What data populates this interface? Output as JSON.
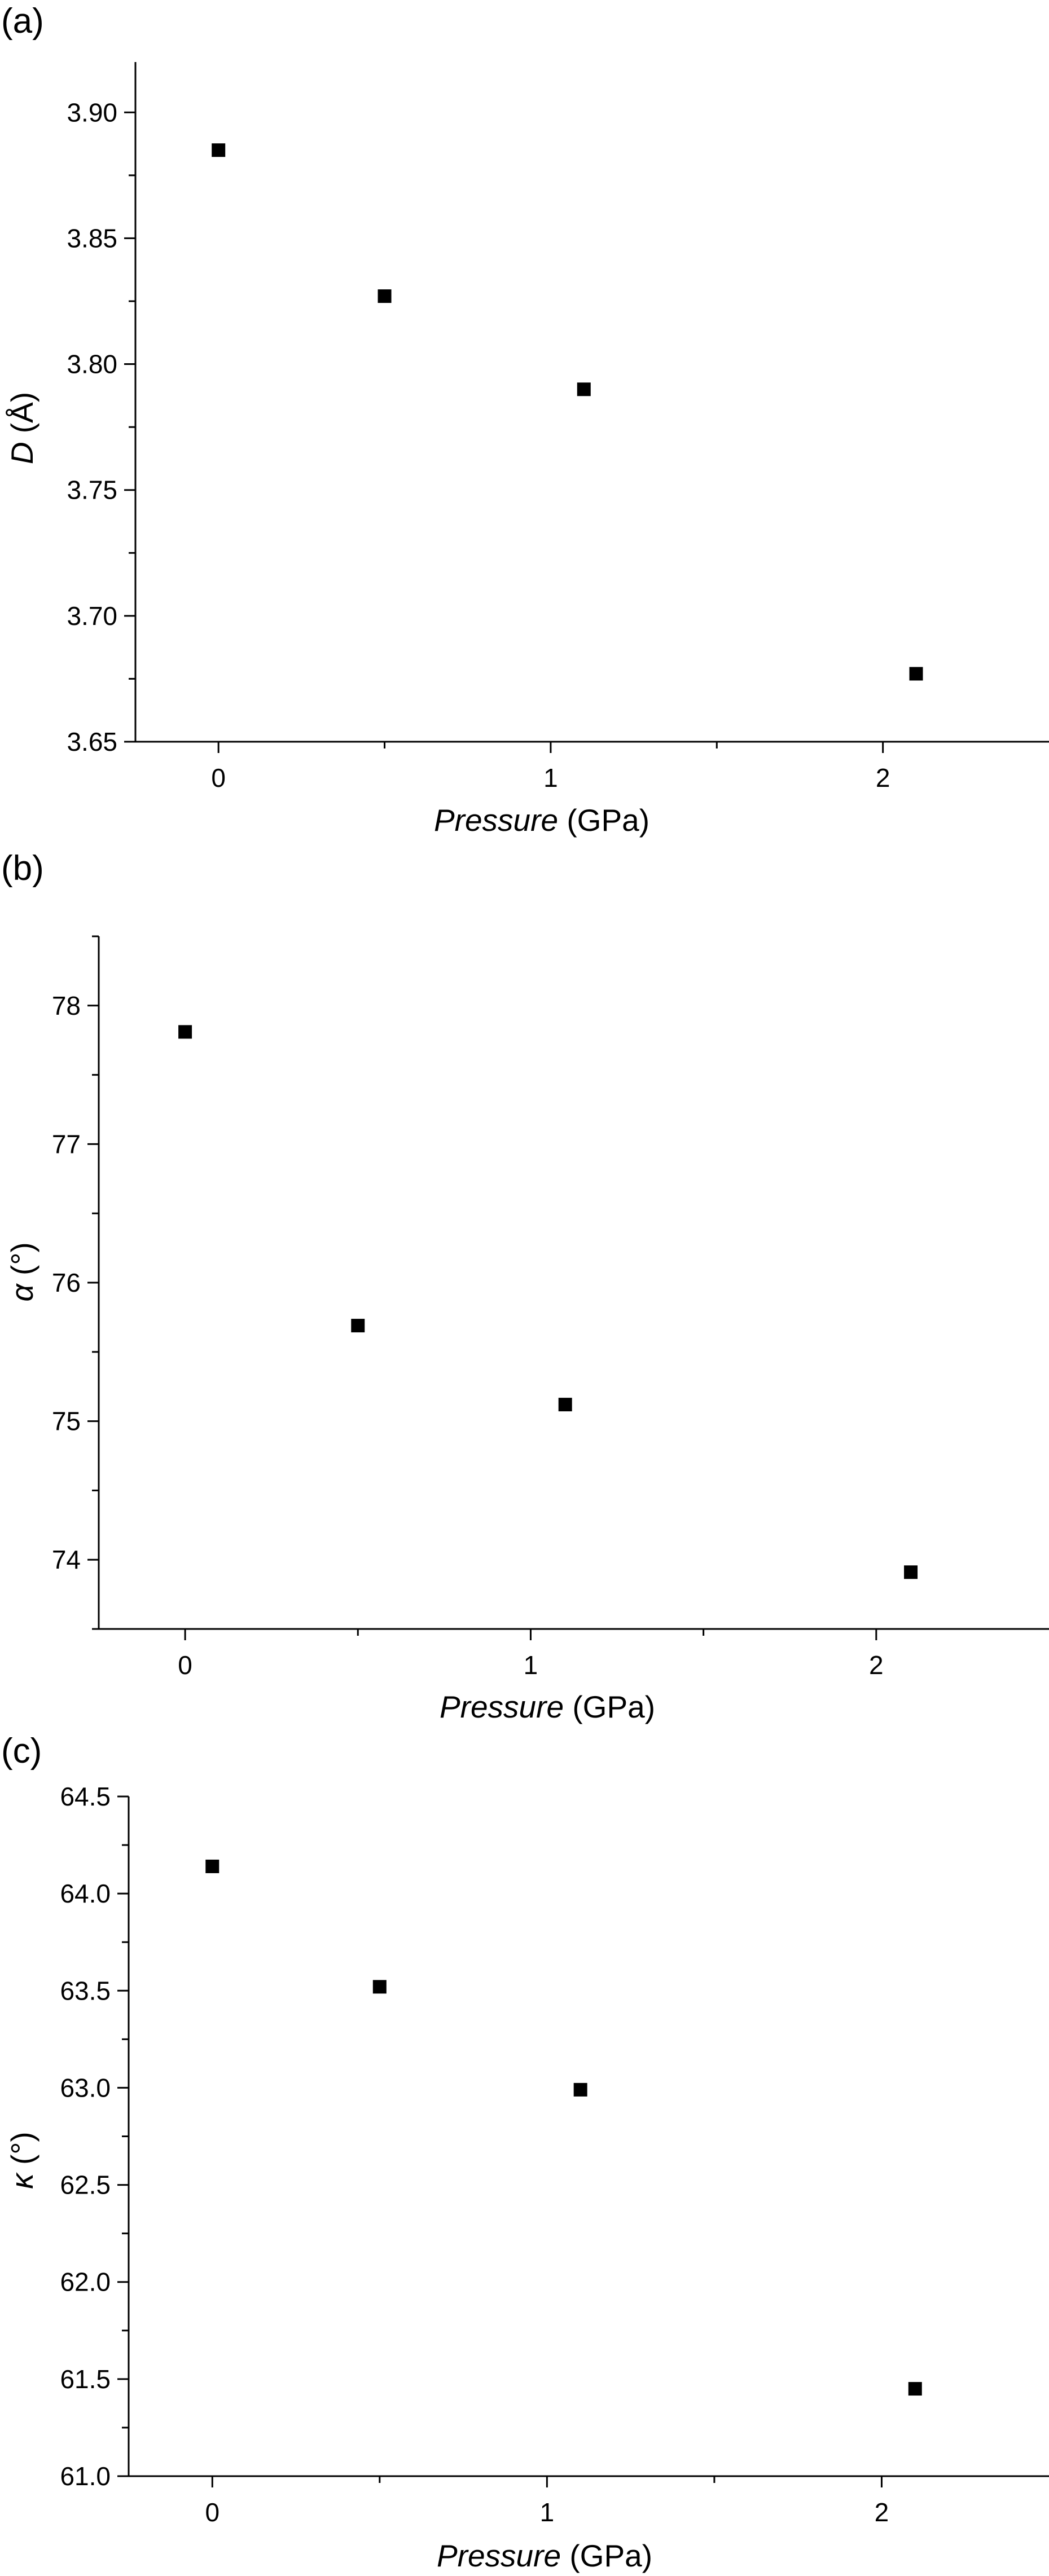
{
  "chart_data": [
    {
      "type": "scatter",
      "panel_label": "(a)",
      "x": [
        0,
        0.5,
        1.1,
        2.1
      ],
      "y": [
        3.885,
        3.827,
        3.79,
        3.677
      ],
      "xlim": [
        -0.25,
        2.5
      ],
      "ylim": [
        3.65,
        3.92
      ],
      "x_major_ticks": [
        0,
        1,
        2
      ],
      "x_minor_ticks": [
        0.5,
        1.5
      ],
      "y_major_ticks": [
        3.65,
        3.7,
        3.75,
        3.8,
        3.85,
        3.9
      ],
      "y_minor_ticks": [
        3.675,
        3.725,
        3.775,
        3.825,
        3.875
      ],
      "x_tick_labels": [
        "0",
        "1",
        "2"
      ],
      "y_tick_labels": [
        "3.65",
        "3.70",
        "3.75",
        "3.80",
        "3.85",
        "3.90"
      ],
      "xlabel": {
        "italic": "Pressure",
        "rest": " (GPa)"
      },
      "ylabel": {
        "italic": "D",
        "rest": " (Å)"
      },
      "grid": false,
      "marker": "square",
      "color": "#000000"
    },
    {
      "type": "scatter",
      "panel_label": "(b)",
      "x": [
        0,
        0.5,
        1.1,
        2.1
      ],
      "y": [
        77.81,
        75.69,
        75.12,
        73.91
      ],
      "xlim": [
        -0.25,
        2.5
      ],
      "ylim": [
        73.5,
        78.5
      ],
      "x_major_ticks": [
        0,
        1,
        2
      ],
      "x_minor_ticks": [
        0.5,
        1.5
      ],
      "y_major_ticks": [
        74,
        75,
        76,
        77,
        78
      ],
      "y_minor_ticks": [
        73.5,
        74.5,
        75.5,
        76.5,
        77.5,
        78.5
      ],
      "x_tick_labels": [
        "0",
        "1",
        "2"
      ],
      "y_tick_labels": [
        "74",
        "75",
        "76",
        "77",
        "78"
      ],
      "xlabel": {
        "italic": "Pressure",
        "rest": " (GPa)"
      },
      "ylabel": {
        "italic": "α",
        "rest": " (°)"
      },
      "grid": false,
      "marker": "square",
      "color": "#000000"
    },
    {
      "type": "scatter",
      "panel_label": "(c)",
      "x": [
        0,
        0.5,
        1.1,
        2.1
      ],
      "y": [
        64.14,
        63.52,
        62.99,
        61.45
      ],
      "xlim": [
        -0.25,
        2.5
      ],
      "ylim": [
        61.0,
        64.5
      ],
      "x_major_ticks": [
        0,
        1,
        2
      ],
      "x_minor_ticks": [
        0.5,
        1.5
      ],
      "y_major_ticks": [
        61.0,
        61.5,
        62.0,
        62.5,
        63.0,
        63.5,
        64.0,
        64.5
      ],
      "y_minor_ticks": [
        61.25,
        61.75,
        62.25,
        62.75,
        63.25,
        63.75,
        64.25
      ],
      "x_tick_labels": [
        "0",
        "1",
        "2"
      ],
      "y_tick_labels": [
        "61.0",
        "61.5",
        "62.0",
        "62.5",
        "63.0",
        "63.5",
        "64.0",
        "64.5"
      ],
      "xlabel": {
        "italic": "Pressure",
        "rest": " (GPa)"
      },
      "ylabel": {
        "italic": "κ",
        "rest": " (°)"
      },
      "grid": false,
      "marker": "square",
      "color": "#000000"
    }
  ]
}
